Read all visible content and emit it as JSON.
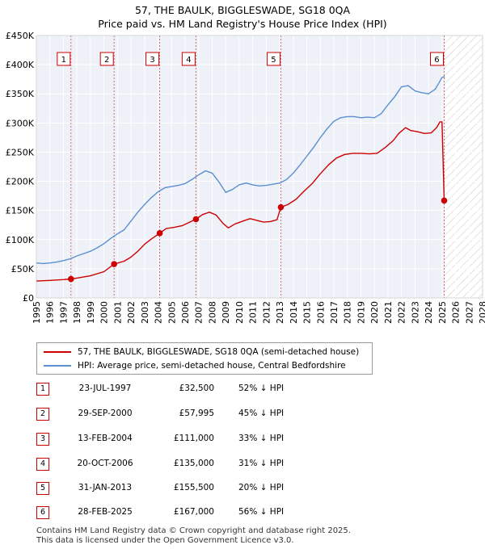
{
  "chart_data": {
    "type": "line",
    "title": "57, THE BAULK, BIGGLESWADE, SG18 0QA",
    "subtitle": "Price paid vs. HM Land Registry's House Price Index (HPI)",
    "xlim": [
      1995,
      2028
    ],
    "ylim": [
      0,
      450000
    ],
    "y_ticks": [
      0,
      50000,
      100000,
      150000,
      200000,
      250000,
      300000,
      350000,
      400000,
      450000
    ],
    "y_tick_labels": [
      "£0",
      "£50K",
      "£100K",
      "£150K",
      "£200K",
      "£250K",
      "£300K",
      "£350K",
      "£400K",
      "£450K"
    ],
    "x_ticks": [
      "1995",
      "1996",
      "1997",
      "1998",
      "1999",
      "2000",
      "2001",
      "2002",
      "2003",
      "2004",
      "2005",
      "2006",
      "2007",
      "2008",
      "2009",
      "2010",
      "2011",
      "2012",
      "2013",
      "2014",
      "2015",
      "2016",
      "2017",
      "2018",
      "2019",
      "2020",
      "2021",
      "2022",
      "2023",
      "2024",
      "2025",
      "2026",
      "2027",
      "2028"
    ],
    "hatched_from": 2025.2,
    "series": [
      {
        "name": "57, THE BAULK, BIGGLESWADE, SG18 0QA (semi-detached house)",
        "color": "#cc0000",
        "points": [
          [
            1995.0,
            29000
          ],
          [
            1996.0,
            30000
          ],
          [
            1997.0,
            31500
          ],
          [
            1997.56,
            32500
          ],
          [
            1998.0,
            34000
          ],
          [
            1999.0,
            38000
          ],
          [
            2000.0,
            45000
          ],
          [
            2000.75,
            57995
          ],
          [
            2001.5,
            63000
          ],
          [
            2002.0,
            70000
          ],
          [
            2002.5,
            80000
          ],
          [
            2003.0,
            92000
          ],
          [
            2003.5,
            101000
          ],
          [
            2004.12,
            111000
          ],
          [
            2004.6,
            119000
          ],
          [
            2005.2,
            121000
          ],
          [
            2005.8,
            124000
          ],
          [
            2006.8,
            135000
          ],
          [
            2007.3,
            143000
          ],
          [
            2007.8,
            147000
          ],
          [
            2008.3,
            142000
          ],
          [
            2008.8,
            128000
          ],
          [
            2009.2,
            120000
          ],
          [
            2009.7,
            127000
          ],
          [
            2010.3,
            132000
          ],
          [
            2010.8,
            136000
          ],
          [
            2011.3,
            133000
          ],
          [
            2011.8,
            130000
          ],
          [
            2012.3,
            131000
          ],
          [
            2012.8,
            134000
          ],
          [
            2013.08,
            155500
          ],
          [
            2013.6,
            160000
          ],
          [
            2014.2,
            169000
          ],
          [
            2014.8,
            183000
          ],
          [
            2015.4,
            196000
          ],
          [
            2016.0,
            213000
          ],
          [
            2016.6,
            228000
          ],
          [
            2017.2,
            240000
          ],
          [
            2017.8,
            246000
          ],
          [
            2018.4,
            248000
          ],
          [
            2019.0,
            248000
          ],
          [
            2019.6,
            247000
          ],
          [
            2020.2,
            248000
          ],
          [
            2020.8,
            258000
          ],
          [
            2021.4,
            270000
          ],
          [
            2021.8,
            282000
          ],
          [
            2022.3,
            292000
          ],
          [
            2022.7,
            287000
          ],
          [
            2023.2,
            285000
          ],
          [
            2023.7,
            282000
          ],
          [
            2024.2,
            283000
          ],
          [
            2024.6,
            292000
          ],
          [
            2024.85,
            302000
          ],
          [
            2025.0,
            302000
          ],
          [
            2025.16,
            167000
          ]
        ]
      },
      {
        "name": "HPI: Average price, semi-detached house, Central Bedfordshire",
        "color": "#5b8fd0",
        "points": [
          [
            1995.0,
            60000
          ],
          [
            1995.5,
            59000
          ],
          [
            1996.0,
            60000
          ],
          [
            1996.5,
            61500
          ],
          [
            1997.0,
            64000
          ],
          [
            1997.5,
            67000
          ],
          [
            1998.0,
            72000
          ],
          [
            1998.5,
            76000
          ],
          [
            1999.0,
            80000
          ],
          [
            1999.5,
            86000
          ],
          [
            2000.0,
            93000
          ],
          [
            2000.5,
            102000
          ],
          [
            2001.0,
            110000
          ],
          [
            2001.5,
            117000
          ],
          [
            2002.0,
            132000
          ],
          [
            2002.5,
            147000
          ],
          [
            2003.0,
            160000
          ],
          [
            2003.5,
            172000
          ],
          [
            2004.0,
            182000
          ],
          [
            2004.5,
            189000
          ],
          [
            2005.0,
            191000
          ],
          [
            2005.5,
            193000
          ],
          [
            2006.0,
            196000
          ],
          [
            2006.5,
            203000
          ],
          [
            2007.0,
            211000
          ],
          [
            2007.5,
            218000
          ],
          [
            2008.0,
            214000
          ],
          [
            2008.5,
            199000
          ],
          [
            2009.0,
            181000
          ],
          [
            2009.5,
            186000
          ],
          [
            2010.0,
            194000
          ],
          [
            2010.5,
            197000
          ],
          [
            2011.0,
            194000
          ],
          [
            2011.5,
            192000
          ],
          [
            2012.0,
            193000
          ],
          [
            2012.5,
            195000
          ],
          [
            2013.0,
            197000
          ],
          [
            2013.5,
            203000
          ],
          [
            2014.0,
            214000
          ],
          [
            2014.5,
            228000
          ],
          [
            2015.0,
            243000
          ],
          [
            2015.5,
            258000
          ],
          [
            2016.0,
            275000
          ],
          [
            2016.5,
            290000
          ],
          [
            2017.0,
            303000
          ],
          [
            2017.5,
            309000
          ],
          [
            2018.0,
            311000
          ],
          [
            2018.5,
            311000
          ],
          [
            2019.0,
            309000
          ],
          [
            2019.5,
            310000
          ],
          [
            2020.0,
            309000
          ],
          [
            2020.5,
            316000
          ],
          [
            2021.0,
            331000
          ],
          [
            2021.5,
            345000
          ],
          [
            2022.0,
            362000
          ],
          [
            2022.5,
            364000
          ],
          [
            2023.0,
            355000
          ],
          [
            2023.5,
            352000
          ],
          [
            2024.0,
            350000
          ],
          [
            2024.5,
            358000
          ],
          [
            2024.8,
            370000
          ],
          [
            2025.0,
            378000
          ],
          [
            2025.2,
            380000
          ]
        ]
      }
    ],
    "sale_markers": [
      {
        "label": "1",
        "x": 1997.56,
        "y": 32500
      },
      {
        "label": "2",
        "x": 2000.75,
        "y": 57995
      },
      {
        "label": "3",
        "x": 2004.12,
        "y": 111000
      },
      {
        "label": "4",
        "x": 2006.8,
        "y": 135000
      },
      {
        "label": "5",
        "x": 2013.08,
        "y": 155500
      },
      {
        "label": "6",
        "x": 2025.16,
        "y": 167000
      }
    ]
  },
  "legend": {
    "property": "57, THE BAULK, BIGGLESWADE, SG18 0QA (semi-detached house)",
    "hpi": "HPI: Average price, semi-detached house, Central Bedfordshire"
  },
  "sales": [
    {
      "num": "1",
      "date": "23-JUL-1997",
      "price": "£32,500",
      "hpi": "52% ↓ HPI"
    },
    {
      "num": "2",
      "date": "29-SEP-2000",
      "price": "£57,995",
      "hpi": "45% ↓ HPI"
    },
    {
      "num": "3",
      "date": "13-FEB-2004",
      "price": "£111,000",
      "hpi": "33% ↓ HPI"
    },
    {
      "num": "4",
      "date": "20-OCT-2006",
      "price": "£135,000",
      "hpi": "31% ↓ HPI"
    },
    {
      "num": "5",
      "date": "31-JAN-2013",
      "price": "£155,500",
      "hpi": "20% ↓ HPI"
    },
    {
      "num": "6",
      "date": "28-FEB-2025",
      "price": "£167,000",
      "hpi": "56% ↓ HPI"
    }
  ],
  "footer": {
    "line1": "Contains HM Land Registry data © Crown copyright and database right 2025.",
    "line2": "This data is licensed under the Open Government Licence v3.0."
  },
  "colors": {
    "property": "#cc0000",
    "hpi": "#5b8fd0",
    "plot_bg": "#eef1f8",
    "grid": "#ffffff"
  }
}
